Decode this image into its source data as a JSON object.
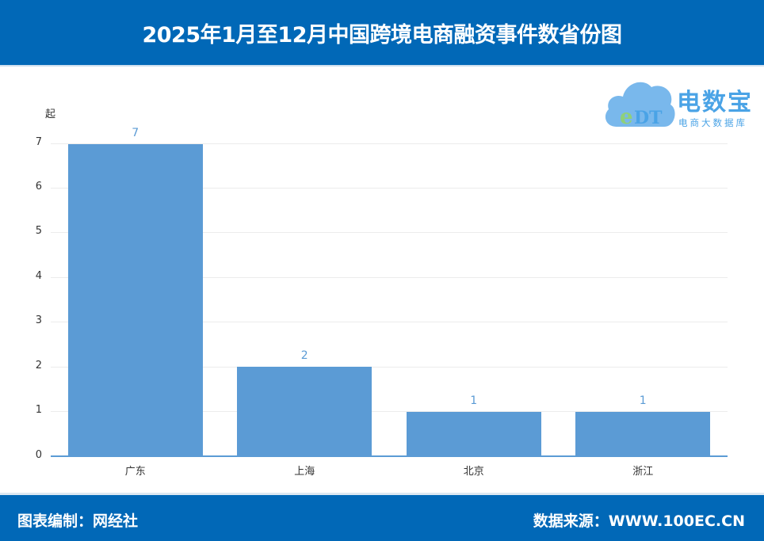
{
  "header": {
    "title": "2025年1月至12月中国跨境电商融资事件数省份图"
  },
  "logo": {
    "icon": "cloud-edt-icon",
    "badge": "eDT",
    "name": "电数宝",
    "subtitle": "电商大数据库"
  },
  "footer": {
    "left": "图表编制：网经社",
    "right": "数据来源：WWW.100EC.CN"
  },
  "colors": {
    "header_bg": "#0168b7",
    "bar": "#5b9bd5",
    "label": "#5b9bd5"
  },
  "chart_data": {
    "type": "bar",
    "title": "2025年1月至12月中国跨境电商融资事件数省份图",
    "xlabel": "",
    "ylabel": "起",
    "categories": [
      "广东",
      "上海",
      "北京",
      "浙江"
    ],
    "values": [
      7,
      2,
      1,
      1
    ],
    "ylim": [
      0,
      7
    ],
    "yticks": [
      0,
      1,
      2,
      3,
      4,
      5,
      6,
      7
    ],
    "grid": true,
    "legend": null,
    "data_labels": true
  }
}
